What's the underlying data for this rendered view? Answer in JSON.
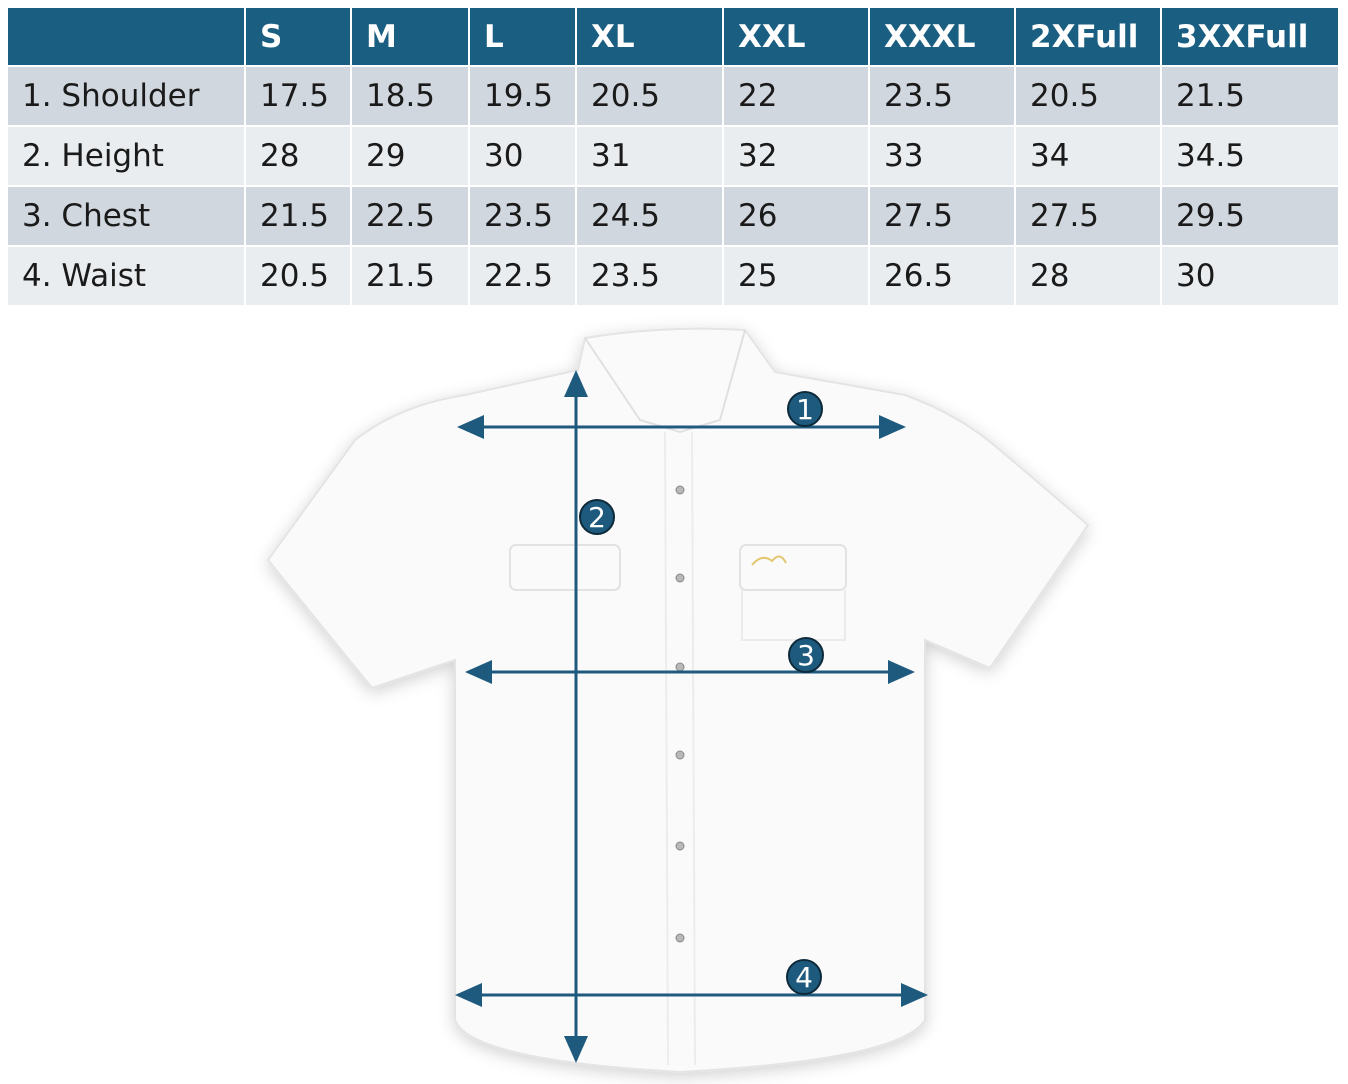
{
  "table": {
    "columns": [
      "S",
      "M",
      "L",
      "XL",
      "XXL",
      "XXXL",
      "2XFull",
      "3XXFull"
    ],
    "rows": [
      {
        "label": "1. Shoulder",
        "values": [
          17.5,
          18.5,
          19.5,
          20.5,
          22,
          23.5,
          20.5,
          21.5
        ]
      },
      {
        "label": "2. Height",
        "values": [
          28,
          29,
          30,
          31,
          32,
          33,
          34,
          34.5
        ]
      },
      {
        "label": "3. Chest",
        "values": [
          21.5,
          22.5,
          23.5,
          24.5,
          26,
          27.5,
          27.5,
          29.5
        ]
      },
      {
        "label": "4. Waist",
        "values": [
          20.5,
          21.5,
          22.5,
          23.5,
          25,
          26.5,
          28,
          30
        ]
      }
    ]
  },
  "diagram": {
    "markers": [
      "1",
      "2",
      "3",
      "4"
    ]
  }
}
